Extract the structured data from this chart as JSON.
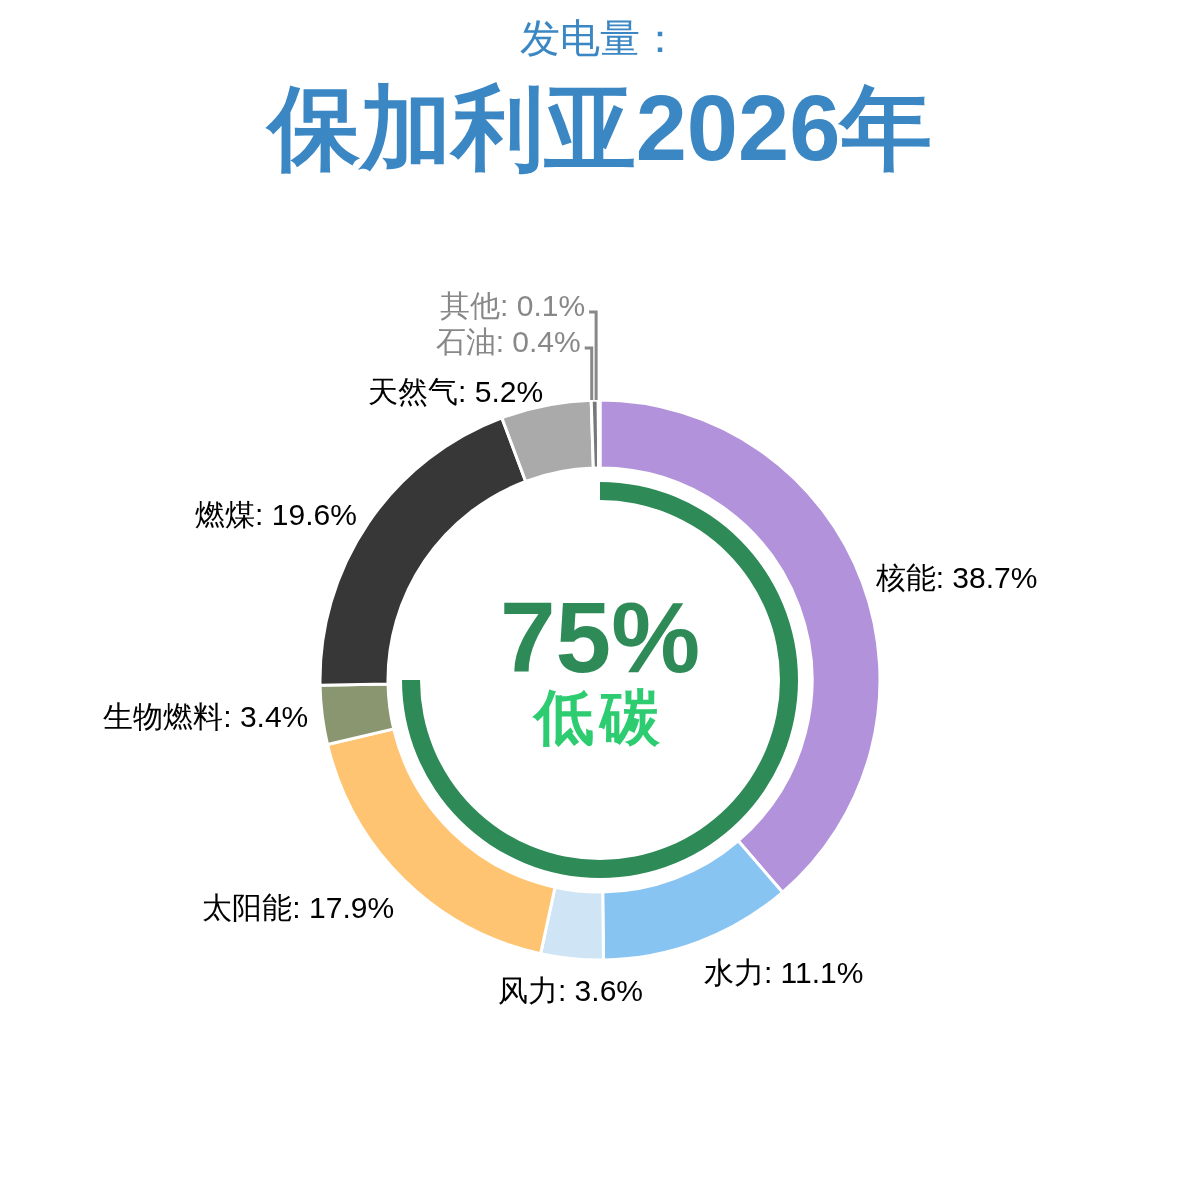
{
  "chart_data": [
    {
      "type": "donut",
      "subtitle": "发电量：",
      "title": "保加利亚2026年",
      "categories": [
        "核能",
        "水力",
        "风力",
        "太阳能",
        "生物燃料",
        "燃煤",
        "天然气",
        "石油",
        "其他"
      ],
      "values": [
        38.7,
        11.1,
        3.6,
        17.9,
        3.4,
        19.6,
        5.2,
        0.4,
        0.1
      ],
      "value_labels": [
        ": 38.7%",
        ": 11.1%",
        ": 3.6%",
        ": 17.9%",
        ": 3.4%",
        ": 19.6%",
        ": 5.2%",
        ": 0.4%",
        ": 0.1%"
      ],
      "colors": [
        "#b293db",
        "#88c4f2",
        "#cfe5f5",
        "#fec472",
        "#8a9670",
        "#373737",
        "#aaaaaa",
        "#777777",
        "#555555"
      ],
      "legend": false
    },
    {
      "type": "pie",
      "categories": [
        "低碳"
      ],
      "values": [
        75
      ],
      "value_labels": [
        "75%"
      ],
      "colors": [
        "#2e8b57"
      ],
      "legend": false
    }
  ]
}
